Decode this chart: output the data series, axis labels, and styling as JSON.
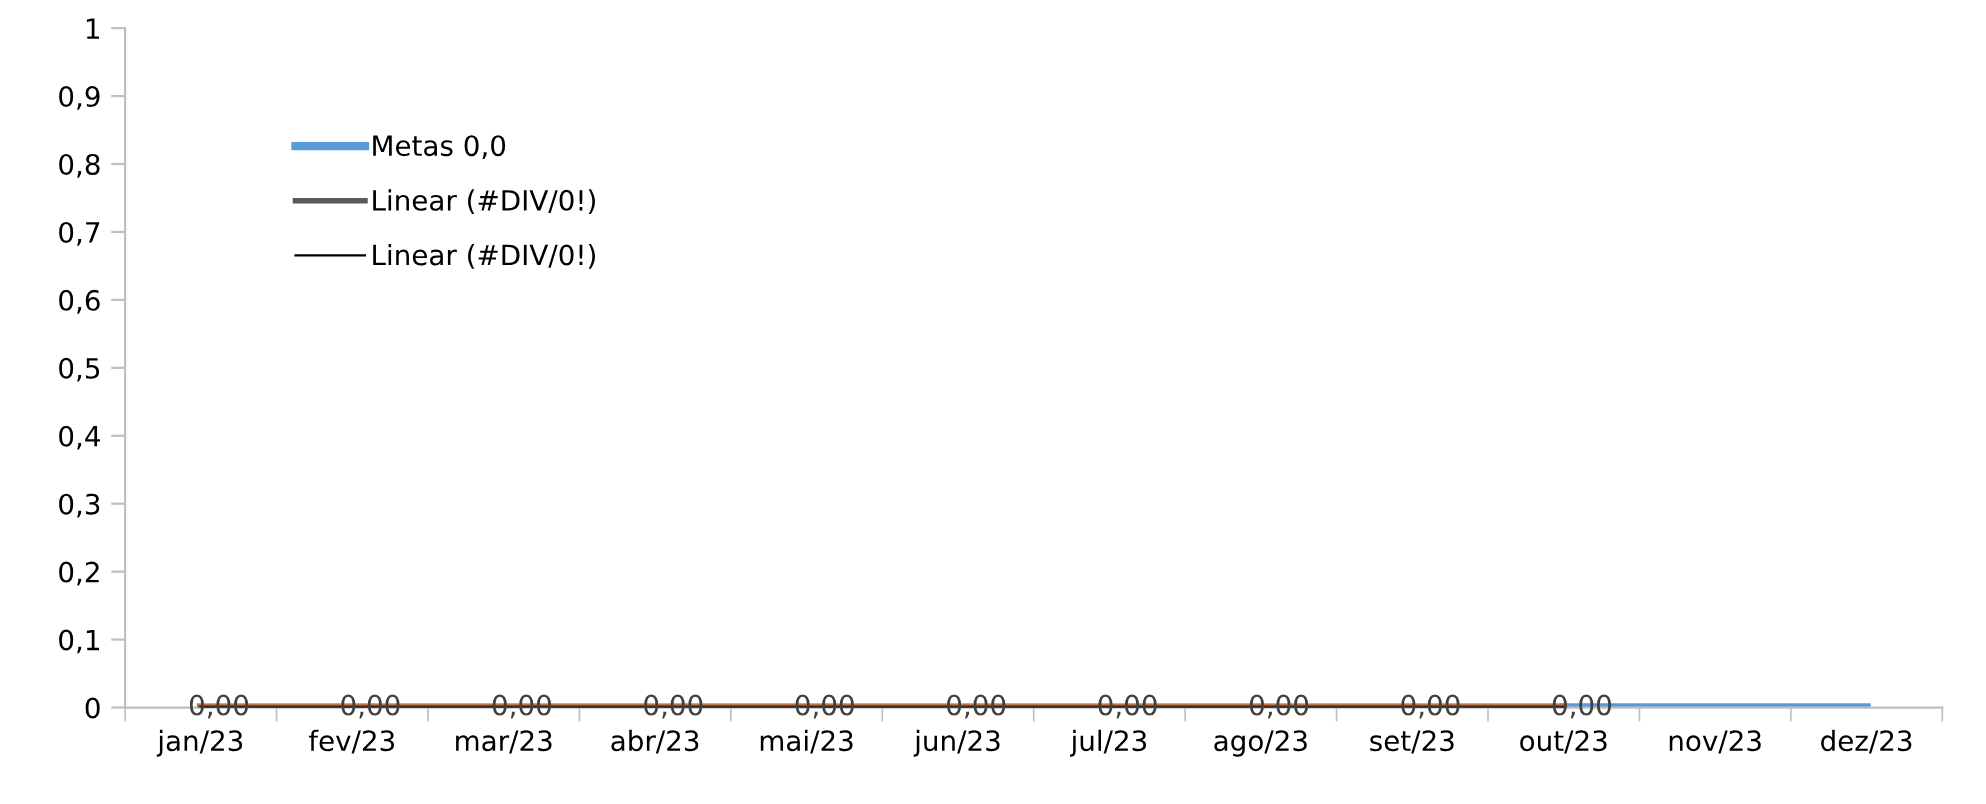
{
  "chart_data": {
    "type": "line",
    "categories": [
      "jan/23",
      "fev/23",
      "mar/23",
      "abr/23",
      "mai/23",
      "jun/23",
      "jul/23",
      "ago/23",
      "set/23",
      "out/23",
      "nov/23",
      "dez/23"
    ],
    "series": [
      {
        "name": "Metas 0,0",
        "color": "#5b9bd5",
        "values": [
          null,
          null,
          null,
          null,
          null,
          null,
          null,
          null,
          null,
          0,
          0,
          0
        ]
      },
      {
        "color": "#ed7d31",
        "values": [
          0,
          0,
          0,
          0,
          0,
          0,
          0,
          0,
          0,
          0,
          null,
          null
        ],
        "value_labels": [
          "0,00",
          "0,00",
          "0,00",
          "0,00",
          "0,00",
          "0,00",
          "0,00",
          "0,00",
          "0,00",
          "0,00",
          null,
          null
        ]
      },
      {
        "name": "Linear (#DIV/0!)",
        "color": "#595959",
        "values": [
          0,
          0,
          0,
          0,
          0,
          0,
          0,
          0,
          0,
          0,
          null,
          null
        ]
      },
      {
        "name": "Linear (#DIV/0!)",
        "color": "#000000",
        "values": [
          0,
          0,
          0,
          0,
          0,
          0,
          0,
          0,
          0,
          0,
          null,
          null
        ]
      }
    ],
    "ylim": [
      0,
      1
    ],
    "yticks": [
      0,
      {
        "value": 0.1,
        "label": "0,1"
      },
      {
        "value": 0.2,
        "label": "0,2"
      },
      {
        "value": 0.3,
        "label": "0,3"
      },
      {
        "value": 0.4,
        "label": "0,4"
      },
      {
        "value": 0.5,
        "label": "0,5"
      },
      {
        "value": 0.6,
        "label": "0,6"
      },
      {
        "value": 0.7,
        "label": "0,7"
      },
      {
        "value": 0.8,
        "label": "0,8"
      },
      {
        "value": 0.9,
        "label": "0,9"
      },
      1
    ],
    "grid": false,
    "legend": "top left"
  }
}
